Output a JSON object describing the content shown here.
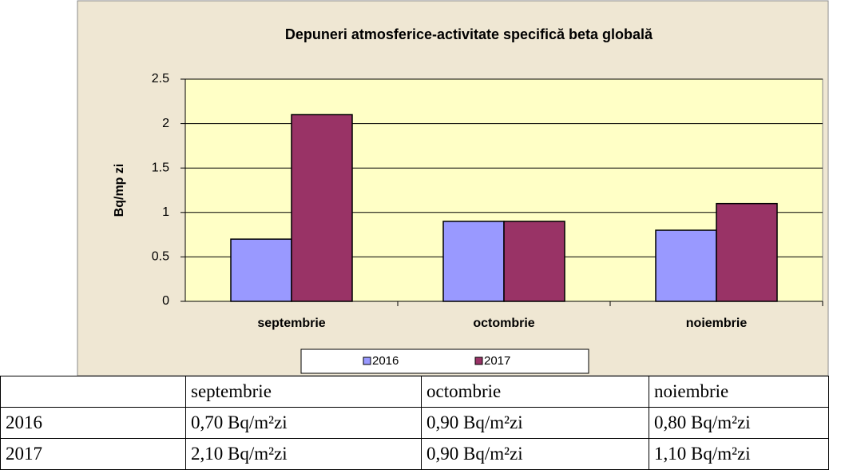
{
  "chart_data": {
    "type": "bar",
    "title": "Depuneri atmosferice-activitate specifică beta globală",
    "y_label": "Bq/mp zi",
    "categories": [
      "septembrie",
      "octombrie",
      "noiembrie"
    ],
    "series": [
      {
        "name": "2016",
        "color": "#9999ff",
        "values": [
          0.7,
          0.9,
          0.8
        ]
      },
      {
        "name": "2017",
        "color": "#993366",
        "values": [
          2.1,
          0.9,
          1.1
        ]
      }
    ],
    "ylim": [
      0,
      2.5
    ],
    "yticks": [
      0,
      0.5,
      1,
      1.5,
      2,
      2.5
    ],
    "grid": true,
    "legend": "bottom"
  },
  "table": {
    "header": [
      "septembrie",
      "octombrie",
      "noiembrie"
    ],
    "rows": [
      [
        "2016",
        "0,70 Bq/m²zi",
        "0,90 Bq/m²zi",
        "0,80 Bq/m²zi"
      ],
      [
        "2017",
        "2,10 Bq/m²zi",
        "0,90 Bq/m²zi",
        "1,10 Bq/m²zi"
      ]
    ]
  }
}
